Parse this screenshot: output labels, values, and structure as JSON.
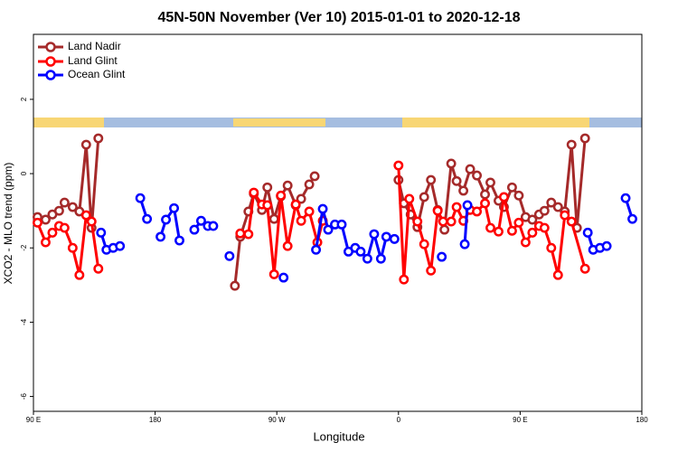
{
  "chart_data": {
    "type": "line",
    "title": "45N-50N November (Ver 10)   2015-01-01 to 2020-12-18",
    "x_label": "Longitude",
    "y_label": "XCO2 - MLO trend (ppm)",
    "xlim": [
      90,
      540
    ],
    "ylim": [
      -6.4,
      3.75
    ],
    "xticks": [
      {
        "value": 90,
        "label": "90 E"
      },
      180,
      {
        "value": 270,
        "label": "90 W"
      },
      {
        "value": 360,
        "label": "0"
      },
      {
        "value": 450,
        "label": "90 E"
      },
      {
        "value": 540,
        "label": "180"
      }
    ],
    "yticks": [
      -6,
      -4,
      -2,
      0,
      2
    ],
    "legend": "upper left",
    "series": [
      {
        "name": "Land Nadir",
        "color": "#a52a2a",
        "x": [
          93,
          99,
          104,
          109,
          113,
          119,
          124,
          129,
          133,
          138,
          null,
          239,
          243,
          249,
          253,
          259,
          263,
          268,
          273,
          278,
          284,
          288,
          294,
          298,
          null,
          360,
          364,
          369,
          374,
          379,
          384,
          389,
          394,
          399,
          403,
          408,
          413,
          418,
          424,
          428,
          434,
          438,
          444,
          449,
          454,
          459,
          464,
          468,
          473,
          478,
          483,
          488,
          492,
          498
        ],
        "values": [
          -1.17,
          -1.24,
          -1.1,
          -1.0,
          -0.78,
          -0.9,
          -1.02,
          0.78,
          -1.46,
          0.95,
          null,
          -3.02,
          -1.7,
          -1.02,
          -0.54,
          -0.98,
          -0.37,
          -1.22,
          -0.61,
          -0.32,
          -0.85,
          -0.68,
          -0.29,
          -0.07,
          null,
          -0.17,
          -0.8,
          -1.1,
          -1.44,
          -0.63,
          -0.17,
          -0.98,
          -1.51,
          0.27,
          -0.2,
          -0.46,
          0.12,
          -0.05,
          -0.56,
          -0.24,
          -0.73,
          -0.9,
          -0.37,
          -0.59,
          -1.17,
          -1.24,
          -1.1,
          -1.0,
          -0.78,
          -0.9,
          -1.02,
          0.78,
          -1.46,
          0.95
        ]
      },
      {
        "name": "Land Glint",
        "color": "#ff0000",
        "x": [
          93,
          99,
          104,
          109,
          113,
          119,
          124,
          129,
          133,
          138,
          null,
          243,
          249,
          253,
          259,
          263,
          268,
          273,
          278,
          284,
          288,
          294,
          300,
          304,
          null,
          360,
          364,
          368,
          374,
          379,
          384,
          389,
          393,
          399,
          403,
          408,
          413,
          418,
          424,
          428,
          434,
          438,
          444,
          449,
          454,
          459,
          464,
          468,
          473,
          478,
          483,
          488,
          498
        ],
        "values": [
          -1.32,
          -1.85,
          -1.59,
          -1.41,
          -1.46,
          -2.0,
          -2.73,
          -1.12,
          -1.29,
          -2.56,
          null,
          -1.61,
          -1.63,
          -0.51,
          -0.83,
          -0.85,
          -2.71,
          -0.59,
          -1.95,
          -0.83,
          -1.27,
          -1.02,
          -1.85,
          -1.27,
          null,
          0.22,
          -2.85,
          -0.68,
          -1.29,
          -1.9,
          -2.61,
          -1.0,
          -1.29,
          -1.29,
          -0.9,
          -1.27,
          -0.98,
          -1.02,
          -0.8,
          -1.46,
          -1.56,
          -0.63,
          -1.54,
          -1.32,
          -1.85,
          -1.59,
          -1.41,
          -1.46,
          -2.0,
          -2.73,
          -1.12,
          -1.29,
          -2.56
        ]
      },
      {
        "name": "Ocean Glint",
        "color": "#0000ff",
        "x": [
          140,
          144,
          149,
          154,
          null,
          169,
          174,
          null,
          184,
          188,
          194,
          198,
          null,
          209,
          214,
          219,
          223,
          null,
          235,
          null,
          275,
          null,
          299,
          304,
          308,
          313,
          318,
          323,
          328,
          332,
          337,
          342,
          347,
          351,
          357,
          null,
          392,
          null,
          409,
          411,
          null,
          500,
          504,
          509,
          514,
          null,
          528,
          533
        ],
        "values": [
          -1.59,
          -2.05,
          -2.0,
          -1.95,
          null,
          -0.66,
          -1.22,
          null,
          -1.7,
          -1.24,
          -0.93,
          -1.8,
          null,
          -1.51,
          -1.27,
          -1.41,
          -1.41,
          null,
          -2.22,
          null,
          -2.8,
          null,
          -2.05,
          -0.95,
          -1.51,
          -1.37,
          -1.37,
          -2.1,
          -2.0,
          -2.1,
          -2.29,
          -1.63,
          -2.29,
          -1.7,
          -1.76,
          null,
          -2.24,
          null,
          -1.9,
          -0.85,
          null,
          -1.59,
          -2.05,
          -2.0,
          -1.95,
          null,
          -0.66,
          -1.22
        ]
      }
    ]
  }
}
